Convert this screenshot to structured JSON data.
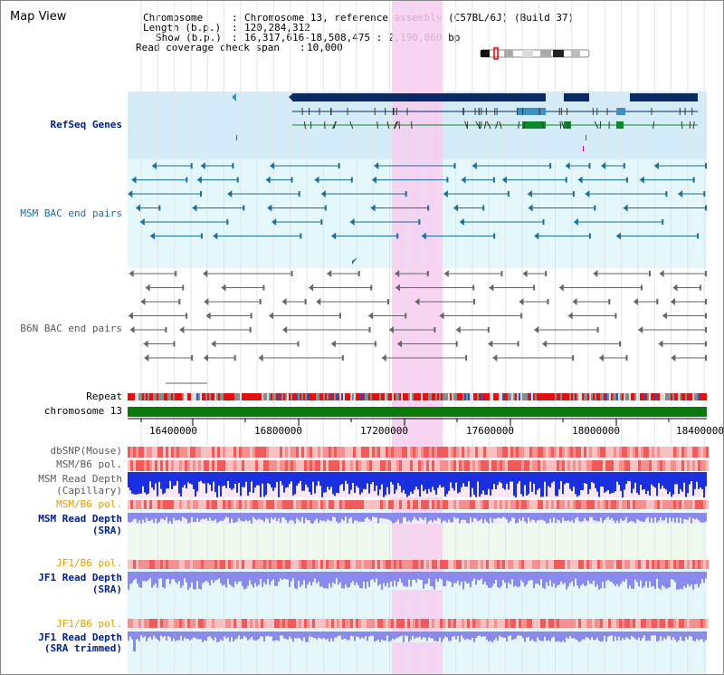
{
  "view_title": "Map View",
  "info": {
    "chromosome_label": "Chromosome",
    "chromosome_value": "Chromosome 13, reference assembly (C57BL/6J) (Build 37)",
    "length_label": "Length (b.p.)",
    "length_value": "120,284,312",
    "show_label": "Show (b.p.)",
    "show_value": "16,317,616-18,508,475 : 2,190,860 bp",
    "coverage_label": "Read coverage check span",
    "coverage_value": "10,000"
  },
  "tracks": {
    "refseq": "RefSeq Genes",
    "msm_bac": "MSM BAC end pairs",
    "b6n_bac": "B6N BAC end pairs",
    "repeat": "Repeat",
    "chromosome": "chromosome 13",
    "dbsnp": "dbSNP(Mouse)",
    "msm_b6_pol_1": "MSM/B6 pol.",
    "msm_read_depth_cap_1": "MSM Read Depth",
    "msm_read_depth_cap_2": "(Capillary)",
    "msm_b6_pol_2": "MSM/B6 pol.",
    "msm_read_depth_sra_1": "MSM Read Depth",
    "msm_read_depth_sra_2": "(SRA)",
    "jf1_b6_pol_1": "JF1/B6 pol.",
    "jf1_read_depth_sra_1": "JF1 Read Depth",
    "jf1_read_depth_sra_2": "(SRA)",
    "jf1_b6_pol_2": "JF1/B6 pol.",
    "jf1_read_depth_trim_1": "JF1 Read Depth",
    "jf1_read_depth_trim_2": "(SRA trimmed)"
  },
  "axis": {
    "ticks": [
      "16400000",
      "16800000",
      "17200000",
      "17600000",
      "18000000",
      "18400000"
    ]
  },
  "colors": {
    "refseq_bg": "#d4ecf7",
    "msm_bg": "#e4f7fb",
    "highlight": "#f8cdf0",
    "navy": "#00218c",
    "gene_dark": "#0a2a66",
    "gene_light": "#3f8fc0",
    "gene_green": "#0a8a2a",
    "chromosome_bar": "#0a7a0a",
    "depth_dark": "#1a2fdd",
    "depth_light": "#8a8aee",
    "pol": "#f07070"
  }
}
